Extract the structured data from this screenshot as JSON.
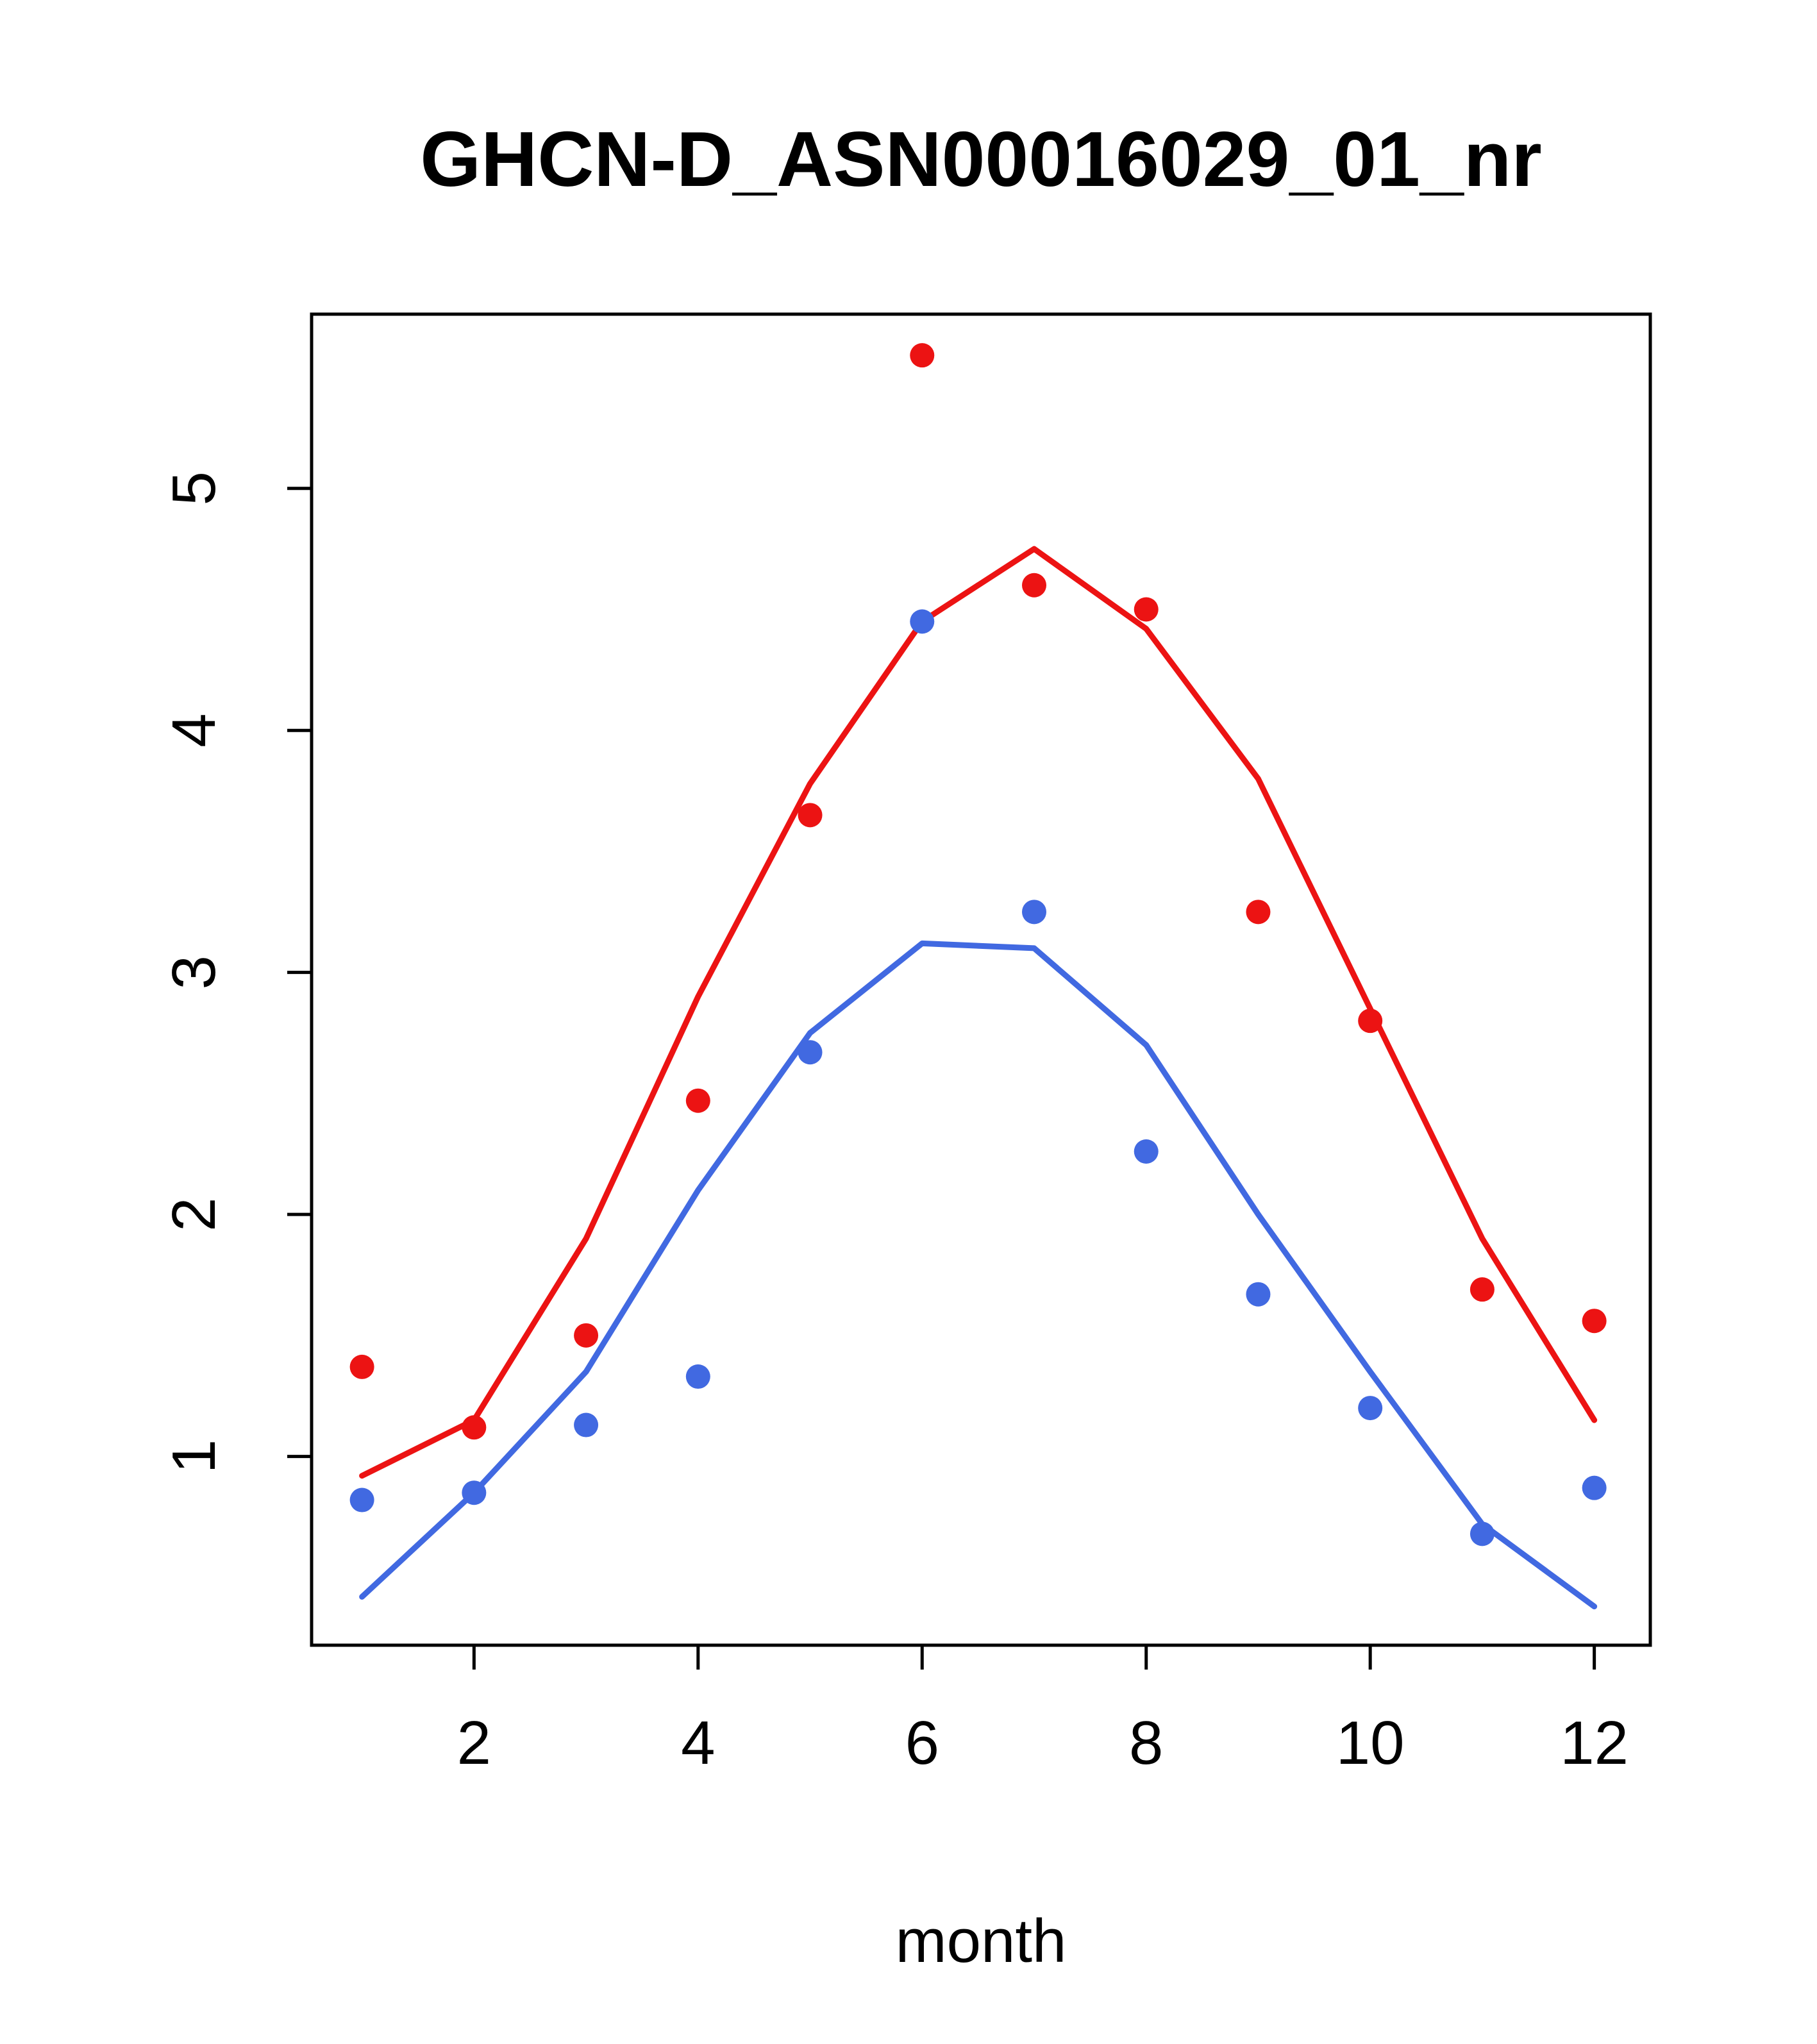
{
  "chart_data": {
    "type": "line",
    "title": "GHCN-D_ASN00016029_01_nr",
    "xlabel": "month",
    "ylabel": "",
    "x": [
      1,
      2,
      3,
      4,
      5,
      6,
      7,
      8,
      9,
      10,
      11,
      12
    ],
    "xlim": [
      0.55,
      12.5
    ],
    "ylim": [
      0.22,
      5.72
    ],
    "xticks": [
      2,
      4,
      6,
      8,
      10,
      12
    ],
    "yticks": [
      1,
      2,
      3,
      4,
      5
    ],
    "grid": false,
    "legend": "none",
    "colors": {
      "red": "#ec1313",
      "blue": "#4169e1",
      "axis": "#000000"
    },
    "series": [
      {
        "name": "red-line",
        "type": "line",
        "color": "#ec1313",
        "values": [
          0.92,
          1.15,
          1.9,
          2.9,
          3.78,
          4.45,
          4.75,
          4.42,
          3.8,
          2.85,
          1.9,
          1.15
        ]
      },
      {
        "name": "blue-line",
        "type": "line",
        "color": "#4169e1",
        "values": [
          0.42,
          0.85,
          1.35,
          2.1,
          2.75,
          3.12,
          3.1,
          2.7,
          2.0,
          1.35,
          0.72,
          0.38
        ]
      },
      {
        "name": "red-points",
        "type": "scatter",
        "color": "#ec1313",
        "values": [
          1.37,
          1.12,
          1.5,
          2.47,
          3.65,
          5.55,
          4.6,
          4.5,
          3.25,
          2.8,
          1.69,
          1.56
        ]
      },
      {
        "name": "blue-points",
        "type": "scatter",
        "color": "#4169e1",
        "values": [
          0.82,
          0.85,
          1.13,
          1.33,
          2.67,
          4.45,
          3.25,
          2.26,
          1.67,
          1.2,
          0.68,
          0.87
        ]
      }
    ]
  }
}
